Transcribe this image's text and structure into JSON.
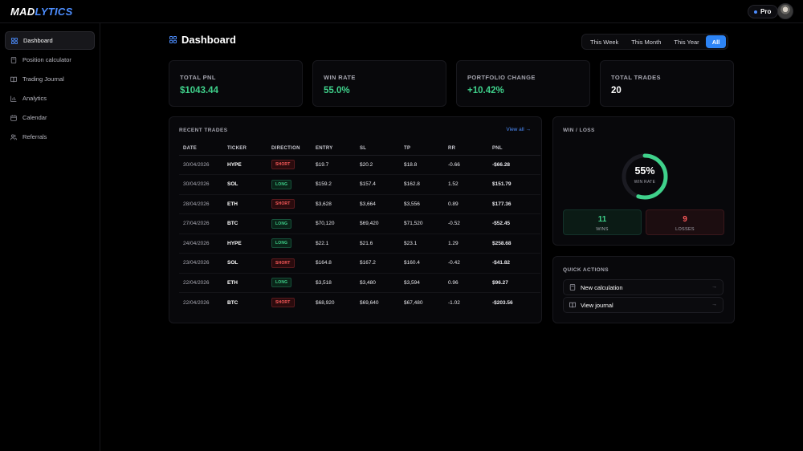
{
  "app": {
    "logo_main": "MAD",
    "logo_accent": "LYTICS",
    "plan_badge": "Pro"
  },
  "sidebar": {
    "items": [
      {
        "label": "Dashboard",
        "icon": "grid-icon",
        "active": true
      },
      {
        "label": "Position calculator",
        "icon": "calculator-icon",
        "active": false
      },
      {
        "label": "Trading Journal",
        "icon": "book-icon",
        "active": false
      },
      {
        "label": "Analytics",
        "icon": "bar-chart-icon",
        "active": false
      },
      {
        "label": "Calendar",
        "icon": "calendar-icon",
        "active": false
      },
      {
        "label": "Referrals",
        "icon": "users-icon",
        "active": false
      }
    ]
  },
  "header": {
    "title": "Dashboard",
    "ranges": [
      {
        "label": "This Week",
        "active": false
      },
      {
        "label": "This Month",
        "active": false
      },
      {
        "label": "This Year",
        "active": false
      },
      {
        "label": "All",
        "active": true
      }
    ]
  },
  "stats": [
    {
      "label": "TOTAL PNL",
      "value": "$1043.44",
      "tone": "green"
    },
    {
      "label": "WIN RATE",
      "value": "55.0%",
      "tone": "green"
    },
    {
      "label": "PORTFOLIO CHANGE",
      "value": "+10.42%",
      "tone": "green"
    },
    {
      "label": "TOTAL TRADES",
      "value": "20",
      "tone": "white"
    }
  ],
  "recent_trades": {
    "title": "RECENT TRADES",
    "view_all": "View all →",
    "columns": [
      "DATE",
      "TICKER",
      "DIRECTION",
      "ENTRY",
      "SL",
      "TP",
      "RR",
      "PNL"
    ],
    "rows": [
      {
        "date": "30/04/2026",
        "ticker": "HYPE",
        "direction": "SHORT",
        "entry": "$19.7",
        "sl": "$20.2",
        "tp": "$18.8",
        "rr": "-0.66",
        "pnl": "-$66.28"
      },
      {
        "date": "30/04/2026",
        "ticker": "SOL",
        "direction": "LONG",
        "entry": "$159.2",
        "sl": "$157.4",
        "tp": "$162.8",
        "rr": "1.52",
        "pnl": "$151.79"
      },
      {
        "date": "28/04/2026",
        "ticker": "ETH",
        "direction": "SHORT",
        "entry": "$3,628",
        "sl": "$3,664",
        "tp": "$3,556",
        "rr": "0.89",
        "pnl": "$177.36"
      },
      {
        "date": "27/04/2026",
        "ticker": "BTC",
        "direction": "LONG",
        "entry": "$70,120",
        "sl": "$69,420",
        "tp": "$71,520",
        "rr": "-0.52",
        "pnl": "-$52.45"
      },
      {
        "date": "24/04/2026",
        "ticker": "HYPE",
        "direction": "LONG",
        "entry": "$22.1",
        "sl": "$21.6",
        "tp": "$23.1",
        "rr": "1.29",
        "pnl": "$258.68"
      },
      {
        "date": "23/04/2026",
        "ticker": "SOL",
        "direction": "SHORT",
        "entry": "$164.8",
        "sl": "$167.2",
        "tp": "$160.4",
        "rr": "-0.42",
        "pnl": "-$41.82"
      },
      {
        "date": "22/04/2026",
        "ticker": "ETH",
        "direction": "LONG",
        "entry": "$3,518",
        "sl": "$3,480",
        "tp": "$3,594",
        "rr": "0.96",
        "pnl": "$96.27"
      },
      {
        "date": "22/04/2026",
        "ticker": "BTC",
        "direction": "SHORT",
        "entry": "$68,920",
        "sl": "$69,640",
        "tp": "$67,480",
        "rr": "-1.02",
        "pnl": "-$203.56"
      }
    ]
  },
  "win_loss": {
    "title": "WIN / LOSS",
    "percent_label": "55%",
    "win_fraction": 0.55,
    "sub_label": "WIN RATE",
    "wins": "11",
    "wins_label": "WINS",
    "losses": "9",
    "losses_label": "LOSSES"
  },
  "quick_actions": {
    "title": "QUICK ACTIONS",
    "items": [
      {
        "label": "New calculation",
        "icon": "calculator-icon"
      },
      {
        "label": "View journal",
        "icon": "book-icon"
      }
    ]
  },
  "colors": {
    "accent": "#2d84f5",
    "positive": "#3fd18b",
    "negative": "#ff5a5a",
    "background": "#000000"
  }
}
